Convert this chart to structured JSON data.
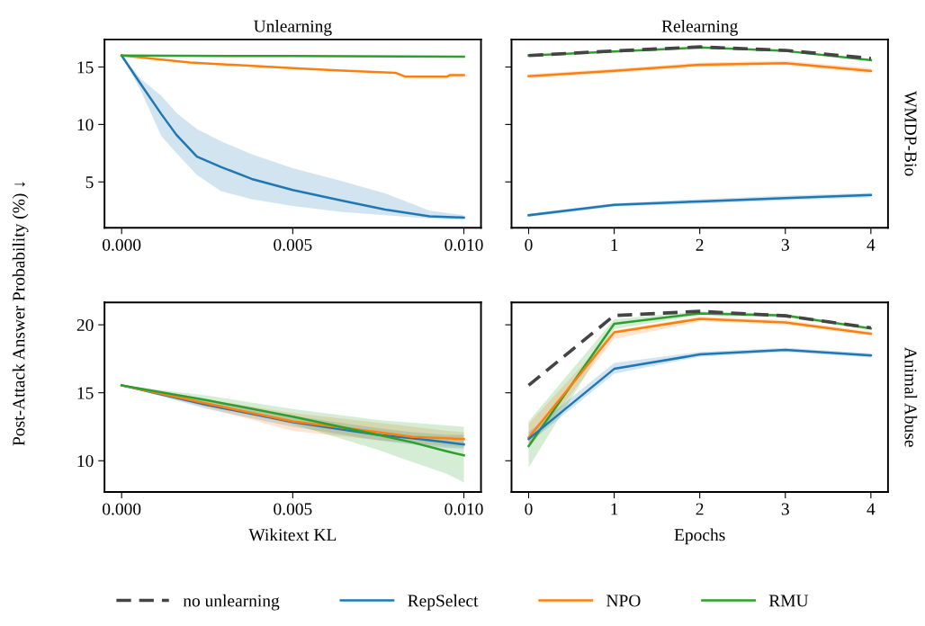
{
  "chart_data": [
    {
      "type": "line",
      "title": "Unlearning",
      "ylabel": "Post-Attack Answer Probability (%) ↓",
      "xlim": [
        -0.0005,
        0.0105
      ],
      "xticks": [
        {
          "value": 0,
          "label": "0.000"
        },
        {
          "value": 0.005,
          "label": "0.005"
        },
        {
          "value": 0.01,
          "label": "0.010"
        }
      ],
      "ylim": [
        1.0,
        17.4
      ],
      "yticks": [
        5,
        10,
        15
      ],
      "grid": false,
      "legend": "bottom",
      "series": [
        {
          "name": "RepSelect",
          "color": "#1f77b4",
          "x": [
            0,
            0.00055,
            0.00116,
            0.0016,
            0.0022,
            0.0029,
            0.0038,
            0.005,
            0.0064,
            0.0077,
            0.009,
            0.01
          ],
          "values": [
            16.0,
            13.55,
            10.9,
            9.1,
            7.2,
            6.3,
            5.26,
            4.3,
            3.4,
            2.6,
            2.0,
            1.9
          ],
          "lower": [
            16.0,
            13.0,
            9.0,
            7.5,
            5.6,
            4.2,
            3.5,
            2.9,
            2.4,
            2.1,
            1.8,
            1.7
          ],
          "upper": [
            16.0,
            14.0,
            12.5,
            11.0,
            9.6,
            8.55,
            7.4,
            6.2,
            5.1,
            4.0,
            2.5,
            2.1
          ]
        },
        {
          "name": "NPO",
          "color": "#ff7f0e",
          "x": [
            0,
            0.002,
            0.005,
            0.0063,
            0.008,
            0.0083,
            0.0095,
            0.0096,
            0.01
          ],
          "values": [
            16.0,
            15.4,
            14.9,
            14.7,
            14.5,
            14.15,
            14.15,
            14.3,
            14.3
          ]
        },
        {
          "name": "RMU",
          "color": "#2ca02c",
          "x": [
            0,
            0.005,
            0.01
          ],
          "values": [
            16.0,
            15.95,
            15.9
          ]
        }
      ]
    },
    {
      "type": "line",
      "title": "Relearning",
      "annotations": [
        "WMDP-Bio"
      ],
      "tick_labels": "x",
      "xlim": [
        -0.2,
        4.2
      ],
      "xticks": [
        0,
        1,
        2,
        3,
        4
      ],
      "ylim": [
        1.0,
        17.4
      ],
      "yticks": [
        5,
        10,
        15
      ],
      "grid": false,
      "series": [
        {
          "name": "RMU",
          "color": "#2ca02c",
          "x": [
            0,
            1,
            2,
            3,
            4
          ],
          "values": [
            16.0,
            16.35,
            16.7,
            16.4,
            15.6
          ]
        },
        {
          "name": "no unlearning",
          "color": "#444444",
          "line_style": "dashed",
          "x": [
            0,
            1,
            2,
            3,
            4
          ],
          "values": [
            16.0,
            16.4,
            16.75,
            16.45,
            15.75
          ]
        },
        {
          "name": "NPO",
          "color": "#ff7f0e",
          "x": [
            0,
            1,
            2,
            3,
            4
          ],
          "values": [
            14.2,
            14.66,
            15.2,
            15.34,
            14.66
          ],
          "lower": [
            14.0,
            14.5,
            15.0,
            15.15,
            14.45
          ],
          "upper": [
            14.4,
            14.85,
            15.4,
            15.55,
            14.9
          ]
        },
        {
          "name": "RepSelect",
          "color": "#1f77b4",
          "x": [
            0,
            1,
            2,
            3,
            4
          ],
          "values": [
            2.1,
            3.0,
            3.3,
            3.6,
            3.87
          ],
          "lower": [
            1.95,
            2.85,
            3.1,
            3.4,
            3.65
          ],
          "upper": [
            2.25,
            3.15,
            3.5,
            3.8,
            4.05
          ]
        }
      ]
    },
    {
      "type": "line",
      "xlabel": "Wikitext KL",
      "xlim": [
        -0.0005,
        0.0105
      ],
      "xticks": [
        {
          "value": 0,
          "label": "0.000"
        },
        {
          "value": 0.005,
          "label": "0.005"
        },
        {
          "value": 0.01,
          "label": "0.010"
        }
      ],
      "ylim": [
        7.7,
        21.65
      ],
      "yticks": [
        10,
        15,
        20
      ],
      "grid": false,
      "series": [
        {
          "name": "RepSelect",
          "color": "#1f77b4",
          "x": [
            0,
            0.0025,
            0.005,
            0.0075,
            0.0085,
            0.0095,
            0.01
          ],
          "values": [
            15.55,
            14.1,
            12.84,
            11.9,
            11.65,
            11.36,
            11.2
          ],
          "lower": [
            15.55,
            13.8,
            12.5,
            11.5,
            11.2,
            10.95,
            10.9
          ],
          "upper": [
            15.55,
            14.4,
            13.3,
            12.4,
            12.1,
            11.9,
            11.9
          ]
        },
        {
          "name": "NPO",
          "color": "#ff7f0e",
          "x": [
            0,
            0.0025,
            0.005,
            0.0075,
            0.0085,
            0.0095,
            0.01
          ],
          "values": [
            15.55,
            14.2,
            12.9,
            12.1,
            11.75,
            11.65,
            11.6
          ],
          "lower": [
            15.55,
            13.9,
            12.2,
            11.5,
            11.3,
            11.1,
            11.0
          ],
          "upper": [
            15.55,
            14.5,
            13.5,
            12.8,
            12.5,
            12.2,
            12.1
          ]
        },
        {
          "name": "RMU",
          "color": "#2ca02c",
          "x": [
            0,
            0.0025,
            0.005,
            0.0075,
            0.0085,
            0.0095,
            0.01
          ],
          "values": [
            15.55,
            14.45,
            13.24,
            11.9,
            11.35,
            10.7,
            10.4
          ],
          "lower": [
            15.55,
            14.1,
            12.7,
            10.8,
            9.9,
            9.05,
            8.4
          ],
          "upper": [
            15.55,
            14.8,
            13.8,
            13.0,
            12.8,
            12.6,
            12.5
          ]
        }
      ]
    },
    {
      "type": "line",
      "xlabel": "Epochs",
      "annotations": [
        "Animal Abuse"
      ],
      "tick_labels": "x",
      "xlim": [
        -0.2,
        4.2
      ],
      "xticks": [
        0,
        1,
        2,
        3,
        4
      ],
      "ylim": [
        7.7,
        21.65
      ],
      "yticks": [
        10,
        15,
        20
      ],
      "grid": false,
      "series": [
        {
          "name": "RMU",
          "color": "#2ca02c",
          "x": [
            0,
            1,
            2,
            3,
            4
          ],
          "values": [
            11.08,
            20.07,
            20.84,
            20.68,
            19.73
          ],
          "lower": [
            9.5,
            19.7,
            20.7,
            20.55,
            19.6
          ],
          "upper": [
            12.9,
            20.4,
            21.0,
            20.8,
            19.85
          ]
        },
        {
          "name": "no unlearning",
          "color": "#444444",
          "line_style": "dashed",
          "x": [
            0,
            1,
            2,
            3,
            4
          ],
          "values": [
            15.55,
            20.68,
            20.99,
            20.66,
            19.78
          ]
        },
        {
          "name": "NPO",
          "color": "#ff7f0e",
          "x": [
            0,
            1,
            2,
            3,
            4
          ],
          "values": [
            11.7,
            19.45,
            20.44,
            20.18,
            19.34
          ],
          "lower": [
            10.9,
            18.96,
            20.25,
            20.0,
            19.2
          ],
          "upper": [
            12.7,
            19.6,
            20.6,
            20.35,
            19.5
          ]
        },
        {
          "name": "RepSelect",
          "color": "#1f77b4",
          "x": [
            0,
            1,
            2,
            3,
            4
          ],
          "values": [
            11.6,
            16.76,
            17.82,
            18.15,
            17.75
          ],
          "lower": [
            11.3,
            16.4,
            17.65,
            18.0,
            17.6
          ],
          "upper": [
            12.1,
            17.2,
            18.0,
            18.3,
            17.9
          ]
        }
      ]
    }
  ]
}
